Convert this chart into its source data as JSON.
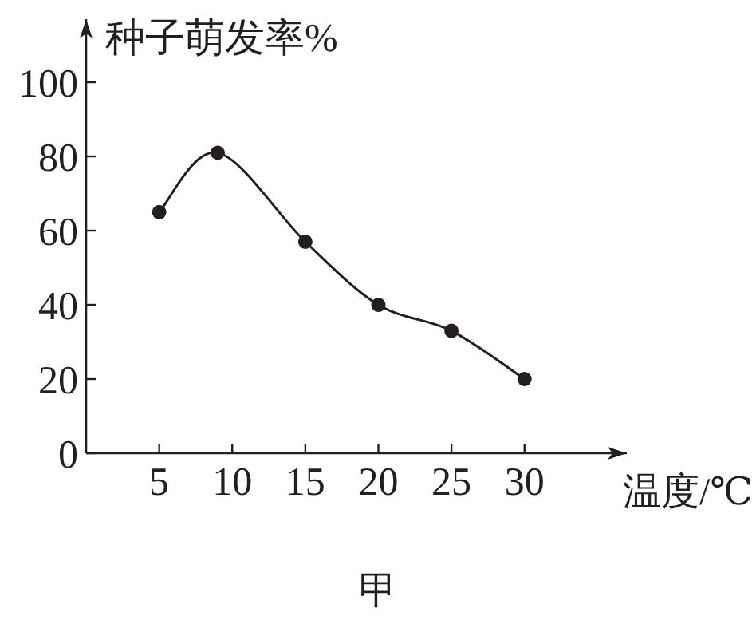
{
  "chart_data": {
    "type": "line",
    "ylabel": "种子萌发率%",
    "xlabel": "温度/℃",
    "annotations": [
      "甲"
    ],
    "x": [
      5,
      9,
      15,
      20,
      25,
      30
    ],
    "series": [
      {
        "color": "#231f20",
        "values": [
          65,
          81,
          57,
          40,
          33,
          20
        ]
      }
    ],
    "marker": "circle",
    "line_style": "solid",
    "grid": false,
    "xlim": [
      0,
      37
    ],
    "ylim": [
      0,
      117
    ],
    "xticks": [
      5,
      10,
      15,
      20,
      25,
      30
    ],
    "yticks": [
      0,
      20,
      40,
      60,
      80,
      100
    ]
  }
}
